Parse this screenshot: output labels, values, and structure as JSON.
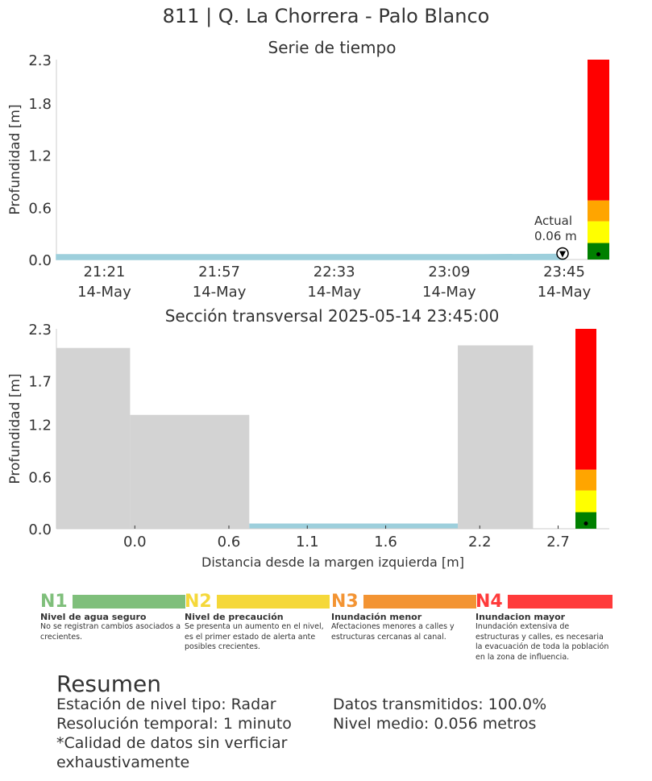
{
  "title": "811 | Q. La Chorrera - Palo Blanco",
  "colors": {
    "water": "#9dcfdc",
    "terrain": "#d3d3d3",
    "n1": "#008000",
    "n2": "#ffff00",
    "n3": "#ffa500",
    "n4": "#ff0000",
    "legend_n1": "#7fbf7b",
    "legend_n2": "#f5d83a",
    "legend_n3": "#f39433",
    "legend_n4": "#ff3b3b"
  },
  "chart_data": [
    {
      "type": "area",
      "title": "Serie de tiempo",
      "xlabel": "",
      "ylabel": "Profundidad [m]",
      "ylim": [
        0,
        2.3
      ],
      "yticks": [
        "0.0",
        "0.6",
        "1.2",
        "1.8",
        "2.3"
      ],
      "yticks_values": [
        0.0,
        0.6,
        1.2,
        1.8,
        2.3
      ],
      "xticks": [
        {
          "time": "21:21",
          "date": "14-May"
        },
        {
          "time": "21:57",
          "date": "14-May"
        },
        {
          "time": "22:33",
          "date": "14-May"
        },
        {
          "time": "23:09",
          "date": "14-May"
        },
        {
          "time": "23:45",
          "date": "14-May"
        }
      ],
      "xticks_minutes": [
        1281,
        1317,
        1353,
        1389,
        1425
      ],
      "xlim_minutes": [
        1266,
        1425
      ],
      "series": [
        {
          "x_minutes": [
            1266,
            1300,
            1350,
            1400,
            1425
          ],
          "values": [
            0.056,
            0.056,
            0.056,
            0.056,
            0.06
          ]
        }
      ],
      "current": {
        "label_line1": "Actual",
        "label_line2": "0.06 m",
        "value": 0.06
      },
      "levels": [
        {
          "name": "N1",
          "from": 0.0,
          "to": 0.19
        },
        {
          "name": "N2",
          "from": 0.19,
          "to": 0.44
        },
        {
          "name": "N3",
          "from": 0.44,
          "to": 0.68
        },
        {
          "name": "N4",
          "from": 0.68,
          "to": 2.3
        }
      ]
    },
    {
      "type": "area",
      "title": "Sección transversal 2025-05-14 23:45:00",
      "xlabel": "Distancia desde la margen izquierda [m]",
      "ylabel": "Profundidad [m]",
      "ylim": [
        0,
        2.3
      ],
      "xlim": [
        -0.5,
        2.8
      ],
      "yticks": [
        "0.0",
        "0.6",
        "1.2",
        "1.7",
        "2.3"
      ],
      "yticks_values": [
        0.0,
        0.6,
        1.2,
        1.7,
        2.3
      ],
      "xticks": [
        "0.0",
        "0.6",
        "1.1",
        "1.6",
        "2.2",
        "2.7"
      ],
      "xticks_values": [
        0.0,
        0.6,
        1.1,
        1.6,
        2.2,
        2.7
      ],
      "terrain": [
        {
          "x0": -0.5,
          "x1": -0.03,
          "height": 2.08
        },
        {
          "x0": -0.03,
          "x1": 0.73,
          "height": 1.31
        },
        {
          "x0": 2.06,
          "x1": 2.54,
          "height": 2.11
        }
      ],
      "water": {
        "x0": 0.73,
        "x1": 2.06,
        "value": 0.06
      },
      "levels": [
        {
          "name": "N1",
          "from": 0.0,
          "to": 0.19
        },
        {
          "name": "N2",
          "from": 0.19,
          "to": 0.44
        },
        {
          "name": "N3",
          "from": 0.44,
          "to": 0.68
        },
        {
          "name": "N4",
          "from": 0.68,
          "to": 2.3
        }
      ]
    }
  ],
  "legend": [
    {
      "code": "N1",
      "name": "Nivel de agua seguro",
      "desc": "No se registran cambios asociados a crecientes."
    },
    {
      "code": "N2",
      "name": "Nivel de precaución",
      "desc": "Se presenta un aumento en el nivel, es el primer estado de alerta ante posibles crecientes."
    },
    {
      "code": "N3",
      "name": "Inundación menor",
      "desc": "Afectaciones menores a calles y estructuras cercanas al canal."
    },
    {
      "code": "N4",
      "name": "Inundacion mayor",
      "desc": "Inundación extensiva de estructuras y calles, es necesaria la evacuación de toda la población en la zona de influencia."
    }
  ],
  "summary": {
    "title": "Resumen",
    "station": "Estación de nivel tipo: Radar",
    "resolution": "Resolución temporal: 1 minuto",
    "quality": "*Calidad de datos sin verficiar exhaustivamente",
    "transmitted": "Datos transmitidos: 100.0%",
    "mean_level": "Nivel medio: 0.056 metros"
  }
}
